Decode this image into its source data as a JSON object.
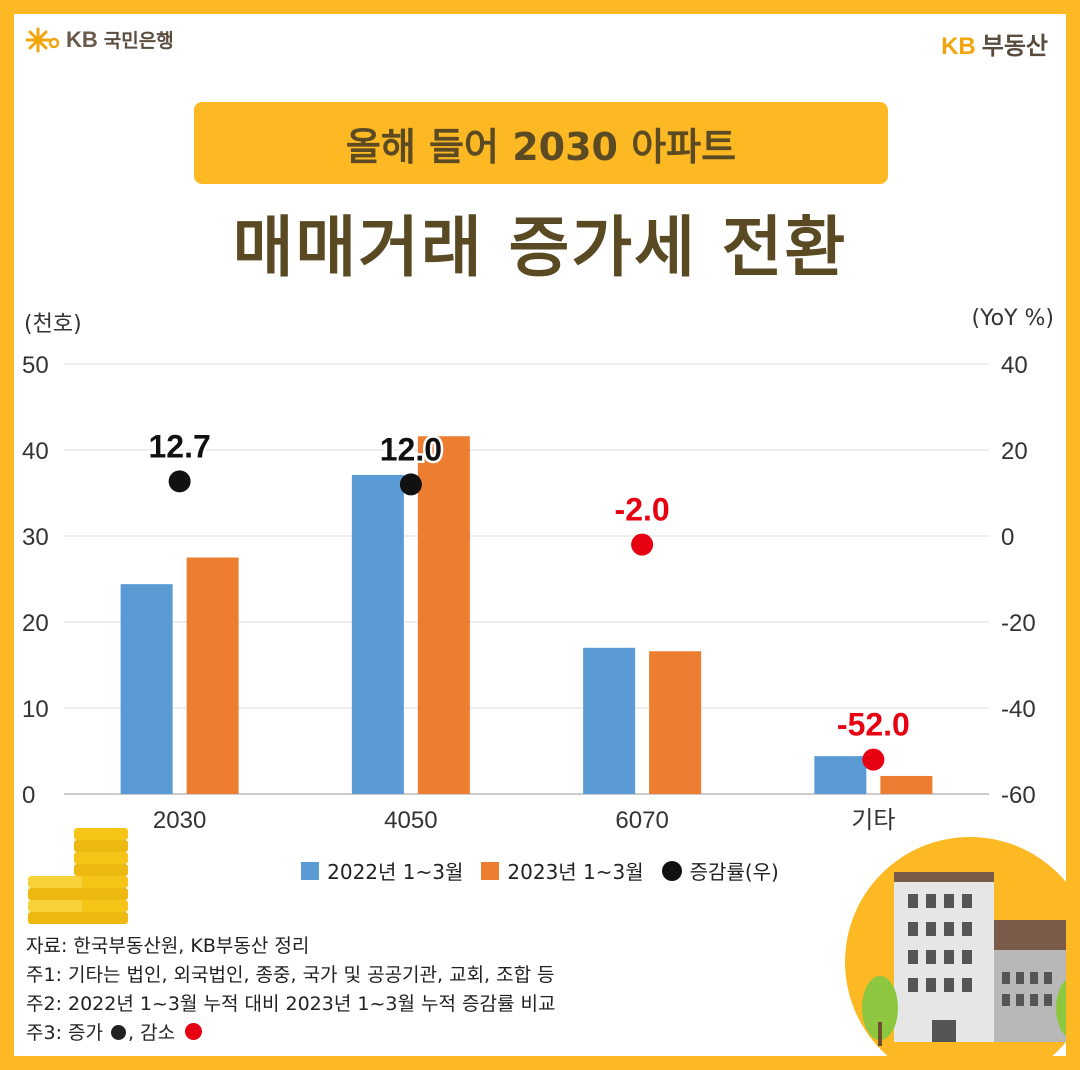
{
  "brand": {
    "bank_logo_mark": "KB",
    "bank_name": "국민은행",
    "realty_mark": "KB",
    "realty_name": "부동산"
  },
  "title": {
    "banner": "올해 들어 2030 아파트",
    "headline": "매매거래 증가세 전환"
  },
  "axes": {
    "left_unit": "(천호)",
    "right_unit": "(YoY %)"
  },
  "chart_data": {
    "type": "bar",
    "categories": [
      "2030",
      "4050",
      "6070",
      "기타"
    ],
    "series": [
      {
        "name": "2022년 1~3월",
        "values": [
          24.4,
          37.1,
          17.0,
          4.4
        ],
        "color": "#5B9BD5"
      },
      {
        "name": "2023년 1~3월",
        "values": [
          27.5,
          41.6,
          16.6,
          2.1
        ],
        "color": "#ED7D31"
      }
    ],
    "overlay": {
      "name": "증감률(우)",
      "type": "scatter",
      "values": [
        12.7,
        12.0,
        -2.0,
        -52.0
      ],
      "labels": [
        "12.7",
        "12.0",
        "-2.0",
        "-52.0"
      ]
    },
    "ylim": [
      0,
      50
    ],
    "yticks": [
      "0",
      "10",
      "20",
      "30",
      "40",
      "50"
    ],
    "y2lim": [
      -60,
      40
    ],
    "y2ticks": [
      "-60",
      "-40",
      "-20",
      "0",
      "20",
      "40"
    ],
    "ylabel": "(천호)",
    "y2label": "(YoY %)"
  },
  "legend": {
    "s1": "2022년 1~3월",
    "s2": "2023년 1~3월",
    "s3": "증감률(우)"
  },
  "notes": {
    "source": "자료: 한국부동산원, KB부동산 정리",
    "n1": "주1: 기타는 법인, 외국법인, 종중, 국가 및 공공기관, 교회, 조합 등",
    "n2": "주2: 2022년 1~3월 누적 대비 2023년 1~3월 누적 증감률 비교",
    "n3_prefix": "주3: 증가",
    "n3_mid": ", 감소"
  },
  "colors": {
    "frame": "#FDB924",
    "series1": "#5B9BD5",
    "series2": "#ED7D31",
    "increase": "#111111",
    "decrease": "#E60012",
    "headline": "#5A4A24"
  }
}
